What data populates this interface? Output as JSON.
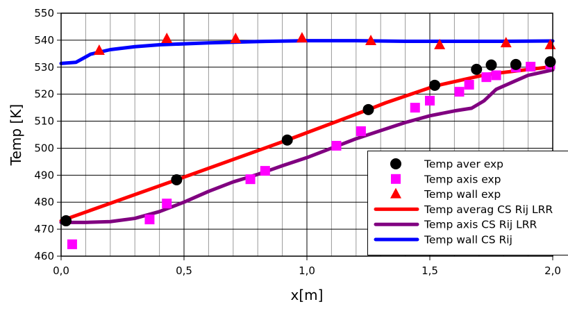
{
  "chart_data": {
    "type": "line",
    "title": "",
    "xlabel": "x[m]",
    "ylabel": "Temp [K]",
    "xlim": [
      0,
      2.0
    ],
    "ylim": [
      460,
      550
    ],
    "x_ticks": [
      "0,0",
      "0,5",
      "1,0",
      "1,5",
      "2,0"
    ],
    "x_tick_values": [
      0,
      0.5,
      1.0,
      1.5,
      2.0
    ],
    "y_ticks": [
      "460",
      "470",
      "480",
      "490",
      "500",
      "510",
      "520",
      "530",
      "540",
      "550"
    ],
    "y_tick_values": [
      460,
      470,
      480,
      490,
      500,
      510,
      520,
      530,
      540,
      550
    ],
    "grid": true,
    "legend_position": "bottom-right",
    "series": [
      {
        "name": "Temp aver exp",
        "kind": "marker",
        "marker": "circle",
        "color": "#000000",
        "x": [
          0.02,
          0.47,
          0.92,
          1.25,
          1.52,
          1.69,
          1.75,
          1.85,
          1.99
        ],
        "y": [
          473.1,
          488.3,
          503.0,
          514.3,
          523.3,
          529.2,
          530.8,
          531.0,
          532.0
        ]
      },
      {
        "name": "Temp axis exp",
        "kind": "marker",
        "marker": "square",
        "color": "#ff00ff",
        "x": [
          0.045,
          0.36,
          0.43,
          0.77,
          0.83,
          1.12,
          1.22,
          1.44,
          1.5,
          1.62,
          1.66,
          1.73,
          1.77,
          1.85,
          1.91,
          1.99
        ],
        "y": [
          464.4,
          473.6,
          479.5,
          488.5,
          491.6,
          500.9,
          506.3,
          515.0,
          517.6,
          520.9,
          523.5,
          526.3,
          527.0,
          529.9,
          530.2,
          531.0
        ]
      },
      {
        "name": "Temp wall exp",
        "kind": "marker",
        "marker": "triangle",
        "color": "#ff0000",
        "x": [
          0.155,
          0.43,
          0.71,
          0.98,
          1.26,
          1.54,
          1.81,
          1.99
        ],
        "y": [
          536.1,
          540.5,
          540.5,
          540.7,
          539.7,
          538.2,
          538.9,
          538.2
        ]
      },
      {
        "name": "Temp averag CS Rij LRR",
        "kind": "line",
        "color": "#ff0000",
        "x": [
          0,
          0.47,
          0.92,
          1.25,
          1.32,
          1.52,
          1.73,
          2.0
        ],
        "y": [
          473.1,
          488.3,
          503.0,
          514.3,
          516.8,
          523.0,
          527.3,
          530.2
        ]
      },
      {
        "name": "Temp axis CS Rij LRR",
        "kind": "line",
        "color": "#800080",
        "x": [
          0,
          0.1,
          0.2,
          0.3,
          0.4,
          0.5,
          0.6,
          0.7,
          0.8,
          0.9,
          1.0,
          1.1,
          1.2,
          1.3,
          1.4,
          1.5,
          1.6,
          1.67,
          1.72,
          1.77,
          1.85,
          1.9,
          2.0
        ],
        "y": [
          472.5,
          472.5,
          472.8,
          474.0,
          476.5,
          480.0,
          484.0,
          487.5,
          490.3,
          493.5,
          496.5,
          500.0,
          503.5,
          506.5,
          509.5,
          512.0,
          513.8,
          514.8,
          517.5,
          521.8,
          525.0,
          527.0,
          529.0
        ]
      },
      {
        "name": "Temp wall CS Rij",
        "kind": "line",
        "color": "#0000ff",
        "x": [
          0,
          0.06,
          0.12,
          0.2,
          0.3,
          0.4,
          0.6,
          0.8,
          1.0,
          1.2,
          1.4,
          1.6,
          1.8,
          2.0
        ],
        "y": [
          531.4,
          531.8,
          534.8,
          536.5,
          537.6,
          538.3,
          539.0,
          539.5,
          539.8,
          539.8,
          539.6,
          539.6,
          539.6,
          539.7
        ]
      }
    ]
  }
}
